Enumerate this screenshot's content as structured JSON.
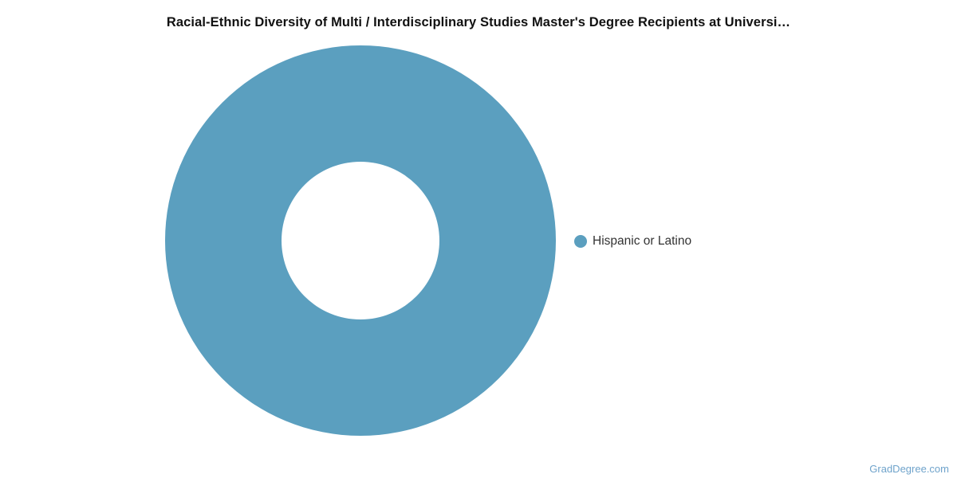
{
  "header": {
    "title": "Racial-Ethnic Diversity of Multi / Interdisciplinary Studies Master's Degree Recipients at Universi…"
  },
  "chart_data": {
    "type": "pie",
    "donut": true,
    "title": "Racial-Ethnic Diversity of Multi / Interdisciplinary Studies Master's Degree Recipients at Universi…",
    "slices": [
      {
        "label": "Hispanic or Latino",
        "value_percent": 100,
        "color": "#5b9fbf"
      }
    ],
    "legend": {
      "position": "right",
      "entries": [
        "Hispanic or Latino"
      ]
    },
    "inner_radius_ratio": 0.4,
    "background": "#ffffff"
  },
  "watermark": {
    "text": "GradDegree.com",
    "color": "#6fa3cb"
  }
}
